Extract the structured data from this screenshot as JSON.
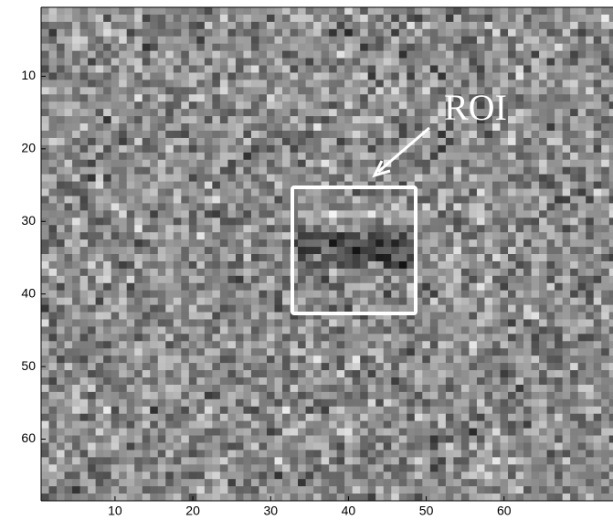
{
  "chart_data": {
    "type": "image",
    "annotation": "ROI",
    "xlim": [
      0.5,
      74
    ],
    "xticks": [
      10,
      20,
      30,
      40,
      50,
      60
    ],
    "ylim": [
      0.5,
      68.5
    ],
    "yticks": [
      10,
      20,
      30,
      40,
      50,
      60
    ],
    "y_reversed": true,
    "colormap": "gray"
  }
}
